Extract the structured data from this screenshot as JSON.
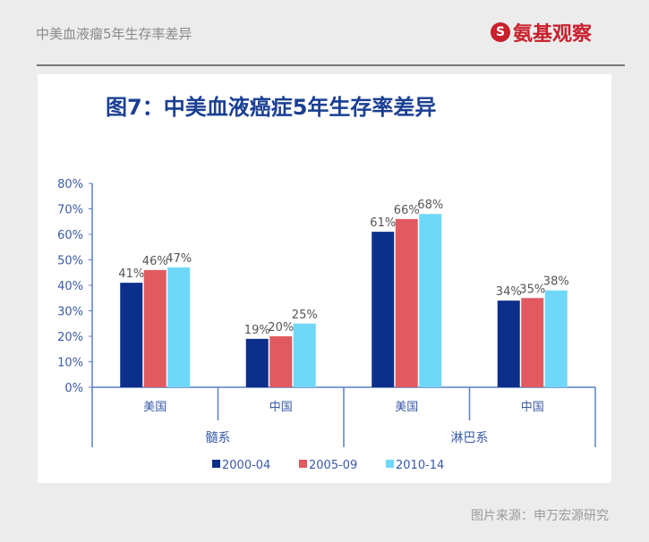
{
  "header": {
    "text": "中美血液瘤5年生存率差异",
    "logo_text": "氨基观察"
  },
  "footer": {
    "source": "图片来源：申万宏源研究"
  },
  "chart_data": {
    "type": "bar",
    "title": "图7：中美血液癌症5年生存率差异",
    "categories": [
      "美国",
      "中国",
      "美国",
      "中国"
    ],
    "category_groups": [
      {
        "label": "髓系",
        "categories": [
          "美国",
          "中国"
        ]
      },
      {
        "label": "淋巴系",
        "categories": [
          "美国",
          "中国"
        ]
      }
    ],
    "series": [
      {
        "name": "2000-04",
        "color": "#0b2f8a",
        "values": [
          41,
          19,
          61,
          34
        ]
      },
      {
        "name": "2005-09",
        "color": "#e05a5f",
        "values": [
          46,
          20,
          66,
          35
        ]
      },
      {
        "name": "2010-14",
        "color": "#6fd8f8",
        "values": [
          47,
          25,
          68,
          38
        ]
      }
    ],
    "yticks": [
      "0%",
      "10%",
      "20%",
      "30%",
      "40%",
      "50%",
      "60%",
      "70%",
      "80%"
    ],
    "ylim": [
      0,
      80
    ],
    "unit": "%",
    "legend": "bottom",
    "grid": false
  }
}
